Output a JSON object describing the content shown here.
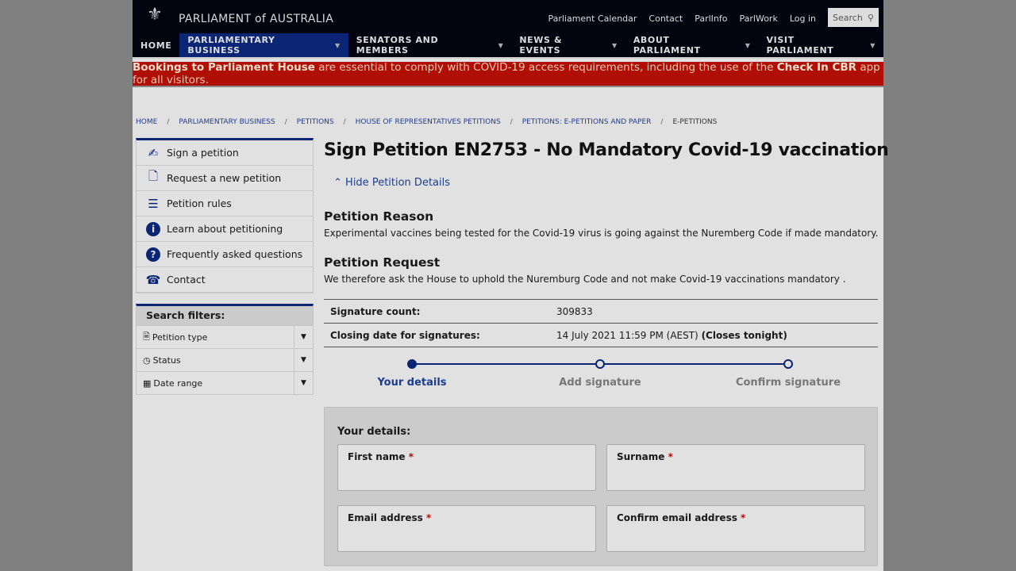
{
  "header": {
    "brand": "PARLIAMENT of AUSTRALIA",
    "util_links": [
      "Parliament Calendar",
      "Contact",
      "ParlInfo",
      "ParlWork",
      "Log in"
    ],
    "search_label": "Search"
  },
  "nav": [
    "HOME",
    "PARLIAMENTARY BUSINESS",
    "SENATORS AND MEMBERS",
    "NEWS & EVENTS",
    "ABOUT PARLIAMENT",
    "VISIT PARLIAMENT"
  ],
  "alert": {
    "bold1": "Bookings to Parliament House",
    "text1": " are essential to comply with COVID-19 access requirements, including the use of the ",
    "bold2": "Check In CBR",
    "text2": " app for all visitors."
  },
  "breadcrumbs": [
    "HOME",
    "PARLIAMENTARY BUSINESS",
    "PETITIONS",
    "HOUSE OF REPRESENTATIVES PETITIONS",
    "PETITIONS: E-PETITIONS AND PAPER",
    "E-PETITIONS"
  ],
  "sidebar": {
    "items": [
      "Sign a petition",
      "Request a new petition",
      "Petition rules",
      "Learn about petitioning",
      "Frequently asked questions",
      "Contact"
    ],
    "filters_title": "Search filters:",
    "filters": [
      "Petition type",
      "Status",
      "Date range"
    ]
  },
  "main": {
    "title": "Sign Petition EN2753 - No Mandatory Covid-19 vaccination",
    "hide_details": "Hide Petition Details",
    "reason_heading": "Petition Reason",
    "reason": "Experimental vaccines being tested for the Covid-19 virus is going against the Nuremberg Code if made mandatory.",
    "request_heading": "Petition Request",
    "request": "We therefore ask the House to uphold the Nuremburg Code and not make Covid-19 vaccinations mandatory .",
    "sig_label": "Signature count:",
    "sig_value": "309833",
    "close_label": "Closing date for signatures:",
    "close_value": "14 July 2021 11:59 PM (AEST)",
    "close_note": "(Closes tonight)",
    "steps": [
      "Your details",
      "Add signature",
      "Confirm signature"
    ],
    "form_title": "Your details:",
    "fields": [
      "First name",
      "Surname",
      "Email address",
      "Confirm email address"
    ],
    "required": "*"
  }
}
